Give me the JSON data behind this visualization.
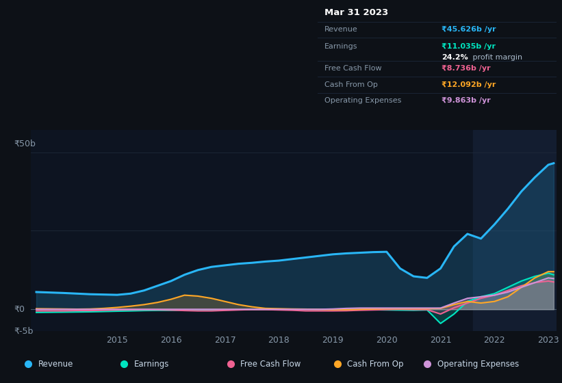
{
  "bg_color": "#0d1117",
  "plot_bg_color": "#0d1421",
  "highlight_bg_color": "#131d30",
  "grid_color": "#1e2a3a",
  "zero_line_color": "#8899aa",
  "text_color": "#8899aa",
  "title_color": "#ffffff",
  "ylim": [
    -7,
    57
  ],
  "revenue_color": "#29b6f6",
  "earnings_color": "#00e5c0",
  "fcf_color": "#f06292",
  "cashfromop_color": "#ffa726",
  "opex_color": "#ce93d8",
  "info_box": {
    "title": "Mar 31 2023",
    "revenue_label": "Revenue",
    "revenue_value": "₹45.626b /yr",
    "revenue_color": "#29b6f6",
    "earnings_label": "Earnings",
    "earnings_value": "₹11.035b /yr",
    "earnings_color": "#00e5c0",
    "margin_bold": "24.2%",
    "margin_rest": " profit margin",
    "fcf_label": "Free Cash Flow",
    "fcf_value": "₹8.736b /yr",
    "fcf_color": "#f06292",
    "cashop_label": "Cash From Op",
    "cashop_value": "₹12.092b /yr",
    "cashop_color": "#ffa726",
    "opex_label": "Operating Expenses",
    "opex_value": "₹9.863b /yr",
    "opex_color": "#ce93d8"
  },
  "legend": [
    {
      "label": "Revenue",
      "color": "#29b6f6"
    },
    {
      "label": "Earnings",
      "color": "#00e5c0"
    },
    {
      "label": "Free Cash Flow",
      "color": "#f06292"
    },
    {
      "label": "Cash From Op",
      "color": "#ffa726"
    },
    {
      "label": "Operating Expenses",
      "color": "#ce93d8"
    }
  ],
  "x": [
    2013.5,
    2014.0,
    2014.25,
    2014.5,
    2014.75,
    2015.0,
    2015.25,
    2015.5,
    2015.75,
    2016.0,
    2016.25,
    2016.5,
    2016.75,
    2017.0,
    2017.25,
    2017.5,
    2017.75,
    2018.0,
    2018.25,
    2018.5,
    2018.75,
    2019.0,
    2019.25,
    2019.5,
    2019.75,
    2020.0,
    2020.25,
    2020.5,
    2020.75,
    2021.0,
    2021.25,
    2021.5,
    2021.75,
    2022.0,
    2022.25,
    2022.5,
    2022.75,
    2023.0,
    2023.1
  ],
  "revenue": [
    5.5,
    5.2,
    5.0,
    4.8,
    4.7,
    4.6,
    5.0,
    6.0,
    7.5,
    9.0,
    11.0,
    12.5,
    13.5,
    14.0,
    14.5,
    14.8,
    15.2,
    15.5,
    16.0,
    16.5,
    17.0,
    17.5,
    17.8,
    18.0,
    18.2,
    18.3,
    13.0,
    10.5,
    10.0,
    13.0,
    20.0,
    24.0,
    22.5,
    27.0,
    32.0,
    37.5,
    42.0,
    46.0,
    46.5
  ],
  "earnings": [
    -1.0,
    -0.9,
    -0.85,
    -0.8,
    -0.7,
    -0.6,
    -0.5,
    -0.4,
    -0.35,
    -0.35,
    -0.3,
    -0.25,
    -0.2,
    -0.15,
    -0.1,
    -0.05,
    0.0,
    0.0,
    0.05,
    0.05,
    0.0,
    0.0,
    -0.05,
    -0.1,
    -0.15,
    -0.2,
    -0.25,
    -0.3,
    -0.2,
    -4.5,
    -1.5,
    2.5,
    4.0,
    5.0,
    7.0,
    9.0,
    10.5,
    11.5,
    11.0
  ],
  "fcf": [
    -0.5,
    -0.5,
    -0.4,
    -0.4,
    -0.3,
    -0.2,
    -0.15,
    -0.1,
    -0.15,
    -0.25,
    -0.4,
    -0.5,
    -0.5,
    -0.35,
    -0.2,
    -0.1,
    -0.1,
    -0.2,
    -0.3,
    -0.5,
    -0.5,
    -0.5,
    -0.45,
    -0.3,
    -0.2,
    -0.1,
    0.0,
    -0.1,
    -0.1,
    -1.5,
    0.5,
    2.0,
    3.5,
    4.5,
    6.0,
    7.5,
    8.5,
    9.0,
    8.7
  ],
  "cashfromop": [
    0.2,
    0.1,
    0.05,
    0.1,
    0.3,
    0.6,
    1.0,
    1.5,
    2.2,
    3.2,
    4.5,
    4.2,
    3.5,
    2.5,
    1.5,
    0.8,
    0.3,
    0.2,
    0.1,
    0.05,
    0.0,
    -0.1,
    -0.1,
    0.0,
    0.1,
    0.2,
    0.2,
    0.2,
    0.2,
    0.3,
    1.5,
    2.5,
    2.0,
    2.5,
    4.0,
    7.0,
    10.0,
    12.0,
    12.0
  ],
  "opex": [
    0.0,
    0.0,
    0.0,
    0.0,
    0.0,
    0.0,
    0.0,
    0.0,
    0.0,
    0.0,
    0.0,
    0.0,
    0.0,
    0.0,
    0.0,
    0.0,
    0.0,
    0.0,
    0.0,
    0.0,
    0.0,
    0.1,
    0.3,
    0.4,
    0.4,
    0.4,
    0.4,
    0.4,
    0.4,
    0.4,
    2.0,
    3.5,
    4.0,
    4.5,
    5.5,
    7.0,
    8.5,
    10.0,
    9.8
  ]
}
